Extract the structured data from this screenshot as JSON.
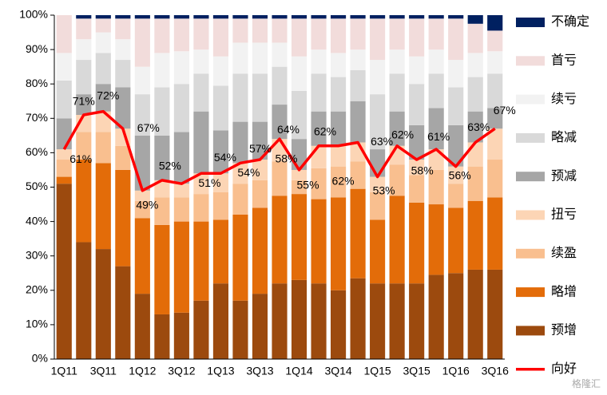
{
  "chart_data": {
    "type": "bar",
    "stacked": true,
    "categories": [
      "1Q11",
      null,
      "3Q11",
      null,
      "1Q12",
      null,
      "3Q12",
      null,
      "1Q13",
      null,
      "3Q13",
      null,
      "1Q14",
      null,
      "3Q14",
      null,
      "1Q15",
      null,
      "3Q15",
      null,
      "1Q16",
      null,
      "3Q16"
    ],
    "series": [
      {
        "name": "预增",
        "color": "#9c4a0e",
        "values": [
          51,
          34,
          32,
          27,
          19,
          13,
          13.5,
          17,
          22,
          17,
          19,
          22,
          23,
          22,
          20,
          23.5,
          22,
          22,
          22,
          24.5,
          25,
          26,
          26
        ]
      },
      {
        "name": "略增",
        "color": "#e36c09",
        "values": [
          2,
          24,
          25,
          28,
          22,
          26,
          26.5,
          23,
          18.5,
          25,
          25,
          25.5,
          25,
          24.5,
          27,
          26,
          18.5,
          25.5,
          23.5,
          20.5,
          19,
          20,
          21
        ]
      },
      {
        "name": "续盈",
        "color": "#f9bf8f",
        "values": [
          5,
          8,
          9,
          7,
          5,
          8,
          7,
          8,
          8,
          9,
          8,
          10,
          4,
          9,
          9,
          8,
          8,
          9,
          8,
          10,
          7,
          10,
          11
        ]
      },
      {
        "name": "扭亏",
        "color": "#fcd5b5",
        "values": [
          3,
          5,
          6,
          5,
          3,
          5,
          4,
          6,
          5.5,
          6,
          6,
          6.5,
          3,
          6.5,
          6,
          5.5,
          4.5,
          5.5,
          4.5,
          6,
          5,
          7,
          9
        ]
      },
      {
        "name": "预减",
        "color": "#a6a6a6",
        "values": [
          9,
          6,
          8,
          12,
          16,
          13,
          15,
          18,
          12.5,
          12,
          11,
          10,
          9,
          10,
          10,
          12,
          8,
          10,
          10,
          12,
          12,
          9,
          6
        ]
      },
      {
        "name": "略减",
        "color": "#d9d9d9",
        "values": [
          11,
          10,
          9,
          8,
          12,
          14,
          14,
          11,
          13,
          14,
          14,
          11,
          14,
          11,
          10,
          9,
          16,
          11,
          12,
          10,
          11,
          10,
          10
        ]
      },
      {
        "name": "续亏",
        "color": "#f2f2f2",
        "values": [
          8,
          6,
          6,
          6,
          8,
          10,
          9.5,
          7,
          8.5,
          9,
          9,
          7,
          10,
          7,
          7,
          6,
          10,
          7,
          8,
          7,
          8,
          7,
          6.5
        ]
      },
      {
        "name": "首亏",
        "color": "#f2dcdb",
        "values": [
          11,
          6,
          4,
          6,
          14,
          10,
          9.5,
          9,
          11,
          7,
          7,
          7,
          11,
          9,
          10,
          9,
          12,
          9,
          11,
          9,
          12,
          8.5,
          6
        ]
      },
      {
        "name": "不确定",
        "color": "#002060",
        "values": [
          0,
          1,
          1,
          1,
          1,
          1,
          1,
          1,
          1,
          1,
          1,
          1,
          1,
          1,
          1,
          1,
          1,
          1,
          1,
          1,
          1,
          2.5,
          4.5
        ]
      },
      {
        "name": "向好",
        "color": "#ff0000",
        "type": "line",
        "values": [
          61,
          71,
          72,
          67,
          49,
          52,
          51,
          54,
          54,
          57,
          58,
          64,
          55,
          62,
          62,
          63,
          53,
          62,
          58,
          61,
          56,
          63,
          67
        ],
        "value_labels": [
          "61%",
          "71%",
          "72%",
          "67%",
          "49%",
          "52%",
          "51%",
          "54%",
          "54%",
          "57%",
          "58%",
          "64%",
          "55%",
          "62%",
          "62%",
          "63%",
          "53%",
          "62%",
          "58%",
          "61%",
          "56%",
          "63%",
          "67%"
        ]
      }
    ],
    "ylim": [
      0,
      100
    ],
    "yticks": [
      {
        "value": 0,
        "label": "0%"
      },
      {
        "value": 10,
        "label": "10%"
      },
      {
        "value": 20,
        "label": "20%"
      },
      {
        "value": 30,
        "label": "30%"
      },
      {
        "value": 40,
        "label": "40%"
      },
      {
        "value": 50,
        "label": "50%"
      },
      {
        "value": 60,
        "label": "60%"
      },
      {
        "value": 70,
        "label": "70%"
      },
      {
        "value": 80,
        "label": "80%"
      },
      {
        "value": 90,
        "label": "90%"
      },
      {
        "value": 100,
        "label": "100%"
      }
    ],
    "grid": false,
    "legend": "right",
    "watermark": "格隆汇"
  }
}
